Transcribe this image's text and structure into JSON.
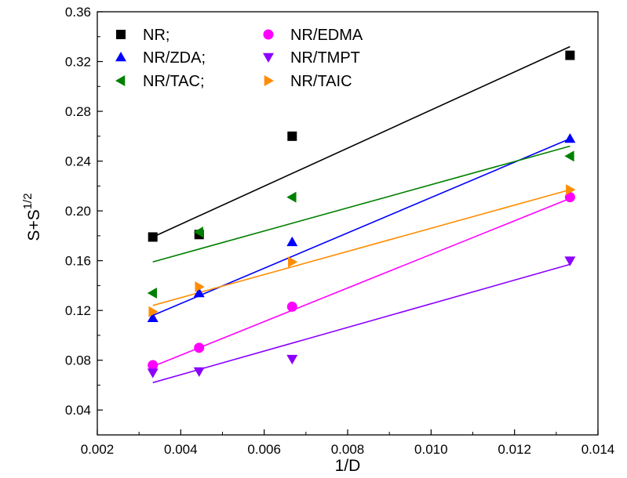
{
  "chart_data": {
    "type": "scatter",
    "xlabel": "1/D",
    "ylabel_main": "S+S",
    "ylabel_sup": "1/2",
    "xlim": [
      0.002,
      0.014
    ],
    "ylim": [
      0.02,
      0.36
    ],
    "x_ticks": [
      "0.002",
      "0.004",
      "0.006",
      "0.008",
      "0.010",
      "0.012",
      "0.014"
    ],
    "y_ticks": [
      "0.04",
      "0.08",
      "0.12",
      "0.16",
      "0.20",
      "0.24",
      "0.28",
      "0.32",
      "0.36"
    ],
    "legend_position": "top-left",
    "series": [
      {
        "name": "NR;",
        "marker": "square",
        "color": "#000000",
        "x": [
          0.00333,
          0.00444,
          0.00667,
          0.01333
        ],
        "y": [
          0.179,
          0.181,
          0.26,
          0.325
        ],
        "fit": {
          "x": [
            0.00333,
            0.01333
          ],
          "y": [
            0.179,
            0.332
          ]
        }
      },
      {
        "name": "NR/ZDA;",
        "marker": "triangle-up",
        "color": "#0000FF",
        "x": [
          0.00333,
          0.00444,
          0.00667,
          0.01333
        ],
        "y": [
          0.114,
          0.134,
          0.175,
          0.258
        ],
        "fit": {
          "x": [
            0.00333,
            0.01333
          ],
          "y": [
            0.116,
            0.258
          ]
        }
      },
      {
        "name": "NR/TAC;",
        "marker": "triangle-left",
        "color": "#008000",
        "x": [
          0.00333,
          0.00444,
          0.00667,
          0.01333
        ],
        "y": [
          0.134,
          0.183,
          0.211,
          0.244
        ],
        "fit": {
          "x": [
            0.00333,
            0.01333
          ],
          "y": [
            0.159,
            0.252
          ]
        }
      },
      {
        "name": "NR/EDMA",
        "marker": "circle",
        "color": "#FF00FF",
        "x": [
          0.00333,
          0.00444,
          0.00667,
          0.01333
        ],
        "y": [
          0.076,
          0.09,
          0.123,
          0.211
        ],
        "fit": {
          "x": [
            0.00333,
            0.01333
          ],
          "y": [
            0.075,
            0.21
          ]
        }
      },
      {
        "name": "NR/TMPT",
        "marker": "triangle-down",
        "color": "#8B00FF",
        "x": [
          0.00333,
          0.00444,
          0.00667,
          0.01333
        ],
        "y": [
          0.07,
          0.071,
          0.081,
          0.16
        ],
        "fit": {
          "x": [
            0.00333,
            0.01333
          ],
          "y": [
            0.062,
            0.157
          ]
        }
      },
      {
        "name": "NR/TAIC",
        "marker": "triangle-right",
        "color": "#FF8C00",
        "x": [
          0.00333,
          0.00444,
          0.00667,
          0.01333
        ],
        "y": [
          0.119,
          0.139,
          0.159,
          0.217
        ],
        "fit": {
          "x": [
            0.00333,
            0.01333
          ],
          "y": [
            0.124,
            0.217
          ]
        }
      }
    ]
  }
}
